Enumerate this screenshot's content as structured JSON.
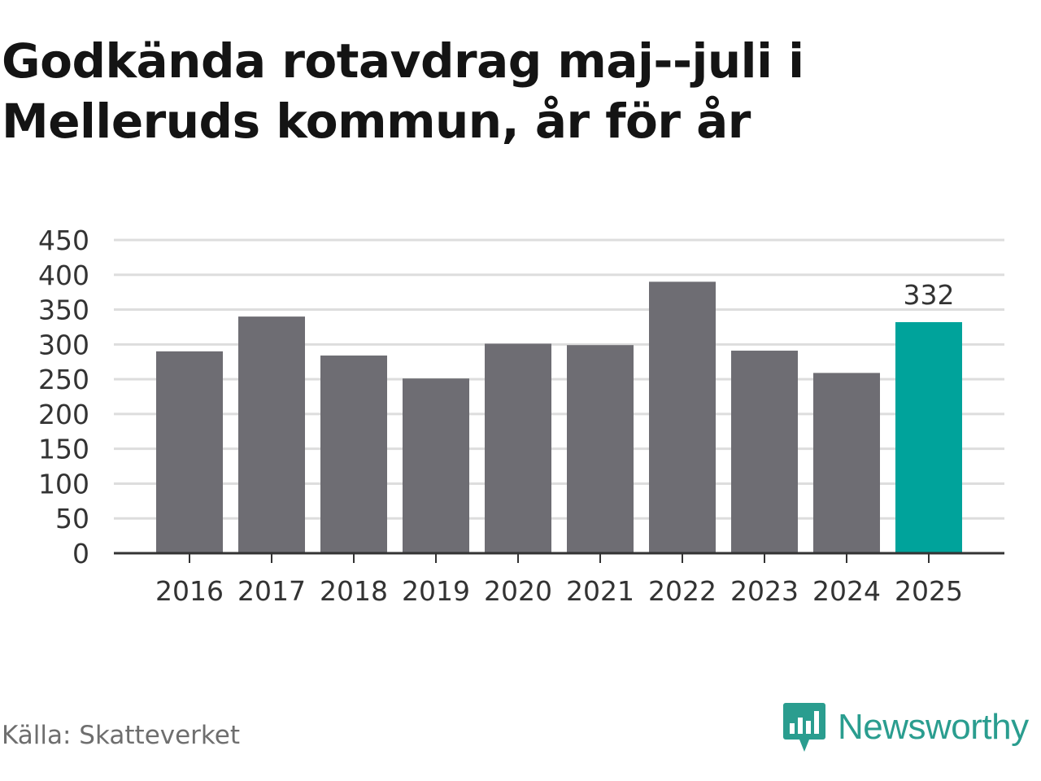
{
  "title": "Godkända rotavdrag maj--juli i Melleruds kommun, år för år",
  "source": "Källa: Skatteverket",
  "brand": {
    "name": "Newsworthy",
    "logo_icon": "bar-chart-speech-bubble-icon"
  },
  "colors": {
    "bar": "#6e6d73",
    "highlight": "#00a39b",
    "grid": "#dddddd",
    "axis": "#333333",
    "brand": "#2a9d8f"
  },
  "chart_data": {
    "type": "bar",
    "categories": [
      "2016",
      "2017",
      "2018",
      "2019",
      "2020",
      "2021",
      "2022",
      "2023",
      "2024",
      "2025"
    ],
    "values": [
      290,
      340,
      284,
      251,
      301,
      299,
      390,
      291,
      259,
      332
    ],
    "highlight_index": 9,
    "data_labels": [
      {
        "index": 9,
        "text": "332"
      }
    ],
    "ylim": [
      0,
      450
    ],
    "yticks": [
      0,
      50,
      100,
      150,
      200,
      250,
      300,
      350,
      400,
      450
    ],
    "grid": true,
    "xlabel": "",
    "ylabel": ""
  }
}
